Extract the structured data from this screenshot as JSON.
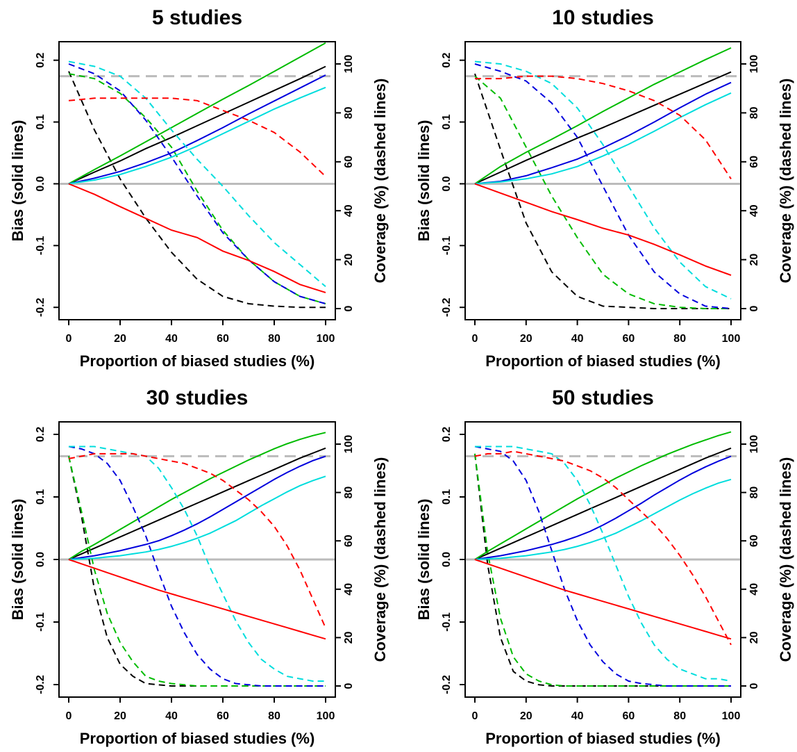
{
  "chart_data": [
    {
      "type": "line",
      "title": "5 studies",
      "xlabel": "Proportion of biased studies (%)",
      "ylabel": "Bias (solid lines)",
      "y2label": "Coverage (%) (dashed lines)",
      "x": [
        0,
        10,
        20,
        30,
        40,
        50,
        60,
        70,
        80,
        90,
        100
      ],
      "xlim": [
        0,
        100
      ],
      "ylim": [
        -0.22,
        0.23
      ],
      "y2lim": [
        0,
        100
      ],
      "xticks": [
        "0",
        "20",
        "40",
        "60",
        "80",
        "100"
      ],
      "yticks": [
        "-0.2",
        "-0.1",
        "0.0",
        "0.1",
        "0.2"
      ],
      "y2ticks": [
        "0",
        "20",
        "40",
        "60",
        "80",
        "100"
      ],
      "reference_lines": {
        "bias_zero": 0.0,
        "coverage_nominal": 95
      },
      "series": [
        {
          "color": "#000000",
          "bias": [
            0,
            0.019,
            0.037,
            0.057,
            0.075,
            0.094,
            0.113,
            0.132,
            0.151,
            0.17,
            0.19
          ],
          "coverage": [
            97,
            73,
            53,
            37,
            23,
            12,
            5,
            2,
            1,
            0.5,
            0.5
          ]
        },
        {
          "color": "#00bb00",
          "bias": [
            0,
            0.023,
            0.045,
            0.068,
            0.091,
            0.114,
            0.137,
            0.159,
            0.182,
            0.205,
            0.228
          ],
          "coverage": [
            96,
            94,
            88,
            78,
            66,
            48,
            32,
            20,
            11,
            5,
            2
          ]
        },
        {
          "color": "#0000dd",
          "bias": [
            0,
            0.009,
            0.02,
            0.034,
            0.05,
            0.07,
            0.091,
            0.113,
            0.134,
            0.155,
            0.176
          ],
          "coverage": [
            100,
            96,
            89,
            77,
            62,
            46,
            31,
            20,
            11,
            5,
            2
          ]
        },
        {
          "color": "#00dddd",
          "bias": [
            0,
            0.006,
            0.015,
            0.028,
            0.043,
            0.061,
            0.081,
            0.101,
            0.121,
            0.139,
            0.156
          ],
          "coverage": [
            101,
            99,
            95,
            86,
            73,
            61,
            50,
            38,
            27,
            18,
            9
          ]
        },
        {
          "color": "#ff0000",
          "bias": [
            0,
            -0.017,
            -0.037,
            -0.056,
            -0.075,
            -0.087,
            -0.109,
            -0.124,
            -0.142,
            -0.163,
            -0.176
          ],
          "coverage": [
            85,
            86,
            86,
            86,
            86,
            85,
            81,
            77,
            72,
            64,
            54
          ]
        }
      ]
    },
    {
      "type": "line",
      "title": "10 studies",
      "xlabel": "Proportion of biased studies (%)",
      "ylabel": "Bias (solid lines)",
      "y2label": "Coverage (%) (dashed lines)",
      "x": [
        0,
        10,
        20,
        30,
        40,
        50,
        60,
        70,
        80,
        90,
        100
      ],
      "xlim": [
        0,
        100
      ],
      "ylim": [
        -0.22,
        0.23
      ],
      "y2lim": [
        0,
        100
      ],
      "xticks": [
        "0",
        "20",
        "40",
        "60",
        "80",
        "100"
      ],
      "yticks": [
        "-0.2",
        "-0.1",
        "0.0",
        "0.1",
        "0.2"
      ],
      "y2ticks": [
        "0",
        "20",
        "40",
        "60",
        "80",
        "100"
      ],
      "reference_lines": {
        "bias_zero": 0.0,
        "coverage_nominal": 95
      },
      "series": [
        {
          "color": "#000000",
          "bias": [
            0,
            0.019,
            0.038,
            0.056,
            0.074,
            0.091,
            0.109,
            0.127,
            0.145,
            0.163,
            0.181
          ],
          "coverage": [
            96,
            65,
            35,
            15,
            5,
            1,
            0.5,
            0,
            0,
            0,
            0
          ]
        },
        {
          "color": "#00bb00",
          "bias": [
            0,
            0.028,
            0.051,
            0.072,
            0.094,
            0.117,
            0.139,
            0.161,
            0.181,
            0.201,
            0.22
          ],
          "coverage": [
            95,
            86,
            66,
            46,
            29,
            14,
            6,
            2,
            0.5,
            0,
            0
          ]
        },
        {
          "color": "#0000dd",
          "bias": [
            0,
            0.004,
            0.013,
            0.026,
            0.04,
            0.058,
            0.078,
            0.1,
            0.123,
            0.145,
            0.164
          ],
          "coverage": [
            100,
            97,
            93,
            84,
            70,
            50,
            30,
            15,
            6,
            1,
            0
          ]
        },
        {
          "color": "#00dddd",
          "bias": [
            0,
            0.003,
            0.008,
            0.016,
            0.028,
            0.045,
            0.064,
            0.085,
            0.107,
            0.128,
            0.147
          ],
          "coverage": [
            101,
            100,
            97,
            92,
            82,
            67,
            50,
            33,
            19,
            9,
            4
          ]
        },
        {
          "color": "#ff0000",
          "bias": [
            0,
            -0.015,
            -0.03,
            -0.045,
            -0.058,
            -0.072,
            -0.083,
            -0.098,
            -0.115,
            -0.133,
            -0.148
          ],
          "coverage": [
            94,
            94,
            95,
            95,
            94,
            92,
            89,
            85,
            79,
            69,
            53
          ]
        }
      ]
    },
    {
      "type": "line",
      "title": "30 studies",
      "xlabel": "Proportion of biased studies (%)",
      "ylabel": "Bias (solid lines)",
      "y2label": "Coverage (%) (dashed lines)",
      "x": [
        0,
        5,
        10,
        15,
        20,
        25,
        30,
        35,
        40,
        45,
        50,
        55,
        60,
        65,
        70,
        75,
        80,
        85,
        90,
        95,
        100
      ],
      "xlim": [
        0,
        100
      ],
      "ylim": [
        -0.22,
        0.22
      ],
      "y2lim": [
        0,
        100
      ],
      "xticks": [
        "0",
        "20",
        "40",
        "60",
        "80",
        "100"
      ],
      "yticks": [
        "-0.2",
        "-0.1",
        "0.0",
        "0.1",
        "0.2"
      ],
      "y2ticks": [
        "0",
        "20",
        "40",
        "60",
        "80",
        "100"
      ],
      "reference_lines": {
        "bias_zero": 0.0,
        "coverage_nominal": 95
      },
      "series": [
        {
          "color": "#000000",
          "bias": [
            0,
            0.009,
            0.018,
            0.027,
            0.036,
            0.045,
            0.054,
            0.063,
            0.072,
            0.081,
            0.09,
            0.099,
            0.108,
            0.117,
            0.126,
            0.135,
            0.144,
            0.153,
            0.162,
            0.17,
            0.178
          ],
          "coverage": [
            95,
            70,
            40,
            20,
            9,
            4,
            1,
            0.5,
            0,
            0,
            0,
            0,
            0,
            0,
            0,
            0,
            0,
            0,
            0,
            0,
            0
          ]
        },
        {
          "color": "#00bb00",
          "bias": [
            0,
            0.013,
            0.024,
            0.036,
            0.048,
            0.06,
            0.072,
            0.084,
            0.096,
            0.107,
            0.118,
            0.129,
            0.139,
            0.149,
            0.159,
            0.168,
            0.177,
            0.185,
            0.192,
            0.198,
            0.203
          ],
          "coverage": [
            95,
            72,
            48,
            30,
            18,
            10,
            4,
            2,
            1,
            0.5,
            0,
            0,
            0,
            0,
            0,
            0,
            0,
            0,
            0,
            0,
            0
          ]
        },
        {
          "color": "#0000dd",
          "bias": [
            0,
            0.003,
            0.006,
            0.01,
            0.014,
            0.019,
            0.024,
            0.03,
            0.038,
            0.047,
            0.057,
            0.068,
            0.08,
            0.092,
            0.104,
            0.116,
            0.128,
            0.139,
            0.149,
            0.158,
            0.165
          ],
          "coverage": [
            99,
            98,
            96,
            92,
            85,
            74,
            62,
            47,
            33,
            22,
            13,
            7,
            3,
            1,
            0.5,
            0,
            0,
            0,
            0,
            0,
            0
          ]
        },
        {
          "color": "#00dddd",
          "bias": [
            0,
            0.001,
            0.002,
            0.004,
            0.006,
            0.009,
            0.012,
            0.016,
            0.021,
            0.027,
            0.034,
            0.042,
            0.052,
            0.062,
            0.074,
            0.086,
            0.097,
            0.108,
            0.118,
            0.126,
            0.133
          ],
          "coverage": [
            99,
            99,
            99,
            98,
            97,
            96,
            95,
            90,
            82,
            73,
            62,
            49,
            38,
            27,
            18,
            11,
            7,
            4,
            3,
            2,
            2
          ]
        },
        {
          "color": "#ff0000",
          "bias": [
            0,
            -0.007,
            -0.014,
            -0.021,
            -0.028,
            -0.035,
            -0.042,
            -0.049,
            -0.055,
            -0.061,
            -0.067,
            -0.073,
            -0.079,
            -0.085,
            -0.091,
            -0.097,
            -0.103,
            -0.109,
            -0.115,
            -0.121,
            -0.127
          ],
          "coverage": [
            94,
            95,
            96,
            96,
            96,
            96,
            95,
            94,
            93,
            92,
            90,
            88,
            85,
            81,
            77,
            72,
            66,
            58,
            48,
            36,
            24
          ]
        }
      ]
    },
    {
      "type": "line",
      "title": "50 studies",
      "xlabel": "Proportion of biased studies (%)",
      "ylabel": "Bias (solid lines)",
      "y2label": "Coverage (%) (dashed lines)",
      "x": [
        0,
        5,
        10,
        15,
        20,
        25,
        30,
        35,
        40,
        45,
        50,
        55,
        60,
        65,
        70,
        75,
        80,
        85,
        90,
        95,
        100
      ],
      "xlim": [
        0,
        100
      ],
      "ylim": [
        -0.22,
        0.22
      ],
      "y2lim": [
        0,
        100
      ],
      "xticks": [
        "0",
        "20",
        "40",
        "60",
        "80",
        "100"
      ],
      "yticks": [
        "-0.2",
        "-0.1",
        "0.0",
        "0.1",
        "0.2"
      ],
      "y2ticks": [
        "0",
        "20",
        "40",
        "60",
        "80",
        "100"
      ],
      "reference_lines": {
        "bias_zero": 0.0,
        "coverage_nominal": 95
      },
      "series": [
        {
          "color": "#000000",
          "bias": [
            0,
            0.009,
            0.018,
            0.027,
            0.036,
            0.045,
            0.054,
            0.063,
            0.072,
            0.081,
            0.09,
            0.099,
            0.108,
            0.117,
            0.126,
            0.135,
            0.144,
            0.153,
            0.162,
            0.17,
            0.178
          ],
          "coverage": [
            96,
            50,
            20,
            6,
            2,
            0.5,
            0,
            0,
            0,
            0,
            0,
            0,
            0,
            0,
            0,
            0,
            0,
            0,
            0,
            0,
            0
          ]
        },
        {
          "color": "#00bb00",
          "bias": [
            0,
            0.013,
            0.025,
            0.037,
            0.049,
            0.061,
            0.073,
            0.085,
            0.097,
            0.108,
            0.119,
            0.13,
            0.14,
            0.15,
            0.159,
            0.168,
            0.176,
            0.184,
            0.191,
            0.198,
            0.204
          ],
          "coverage": [
            96,
            55,
            28,
            12,
            5,
            2,
            0.5,
            0,
            0,
            0,
            0,
            0,
            0,
            0,
            0,
            0,
            0,
            0,
            0,
            0,
            0
          ]
        },
        {
          "color": "#0000dd",
          "bias": [
            0,
            0.003,
            0.006,
            0.01,
            0.014,
            0.019,
            0.024,
            0.03,
            0.037,
            0.045,
            0.055,
            0.066,
            0.078,
            0.09,
            0.103,
            0.115,
            0.127,
            0.138,
            0.148,
            0.157,
            0.165
          ],
          "coverage": [
            99,
            98,
            97,
            93,
            85,
            72,
            56,
            40,
            27,
            17,
            10,
            5,
            2,
            1,
            0.5,
            0,
            0,
            0,
            0,
            0,
            0
          ]
        },
        {
          "color": "#00dddd",
          "bias": [
            0,
            0.001,
            0.002,
            0.004,
            0.006,
            0.009,
            0.012,
            0.016,
            0.021,
            0.027,
            0.034,
            0.042,
            0.052,
            0.062,
            0.073,
            0.084,
            0.095,
            0.105,
            0.114,
            0.122,
            0.128
          ],
          "coverage": [
            99,
            99,
            99,
            99,
            98,
            97,
            96,
            92,
            85,
            75,
            63,
            50,
            37,
            26,
            17,
            11,
            7,
            5,
            3,
            3,
            2
          ]
        },
        {
          "color": "#ff0000",
          "bias": [
            0,
            -0.007,
            -0.014,
            -0.021,
            -0.028,
            -0.035,
            -0.042,
            -0.049,
            -0.055,
            -0.061,
            -0.067,
            -0.073,
            -0.079,
            -0.085,
            -0.091,
            -0.097,
            -0.103,
            -0.109,
            -0.115,
            -0.121,
            -0.127
          ],
          "coverage": [
            95,
            96,
            96,
            97,
            96,
            95,
            94,
            93,
            91,
            89,
            86,
            82,
            77,
            72,
            67,
            61,
            54,
            46,
            37,
            27,
            17
          ]
        }
      ]
    }
  ]
}
